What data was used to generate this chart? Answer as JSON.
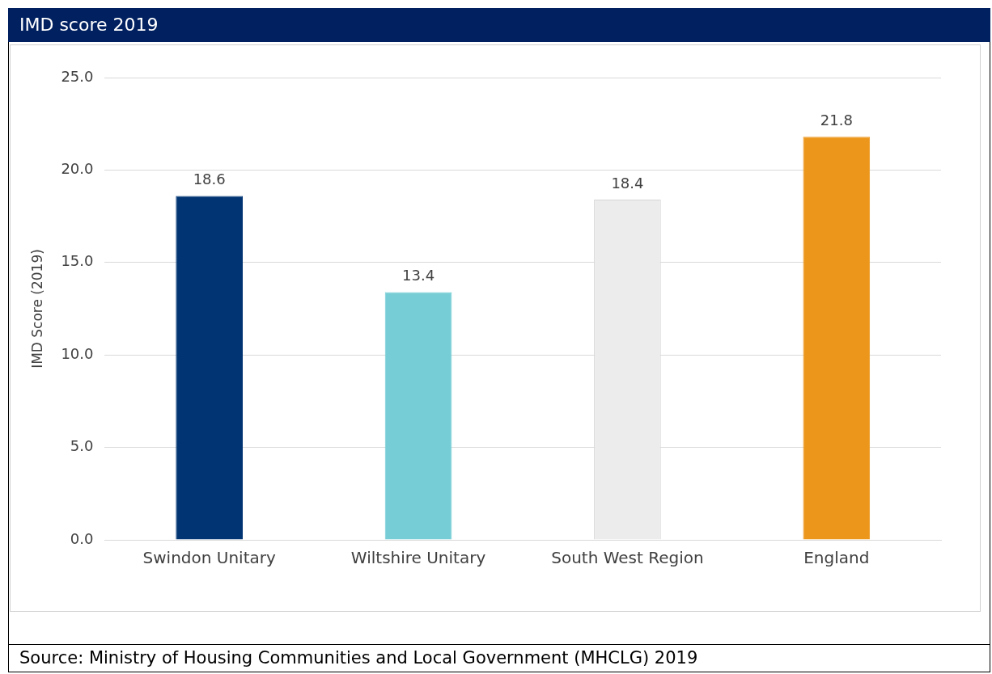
{
  "chart_data": {
    "type": "bar",
    "title": "IMD score 2019",
    "ylabel": "IMD Score (2019)",
    "categories": [
      "Swindon Unitary",
      "Wiltshire Unitary",
      "South West Region",
      "England"
    ],
    "values": [
      18.6,
      13.4,
      18.4,
      21.8
    ],
    "colors": [
      "#003473",
      "#76cdd5",
      "#ececec",
      "#ec961c"
    ],
    "ylim": [
      0,
      25
    ],
    "yticks": [
      {
        "value": 0,
        "label": "0.0"
      },
      {
        "value": 5,
        "label": "5.0"
      },
      {
        "value": 10,
        "label": "10.0"
      },
      {
        "value": 15,
        "label": "15.0"
      },
      {
        "value": 20,
        "label": "20.0"
      },
      {
        "value": 25,
        "label": "25.0"
      }
    ],
    "grid": "y",
    "data_labels": true,
    "annotations": [
      "Source: Ministry of Housing Communities and Local Government (MHCLG) 2019"
    ]
  }
}
